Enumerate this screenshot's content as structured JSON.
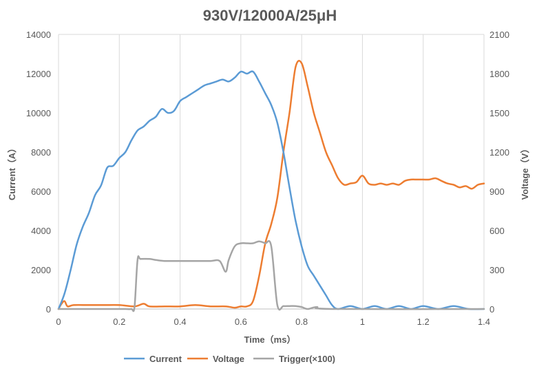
{
  "chart_data": {
    "type": "line",
    "title": "930V/12000A/25μH",
    "xlabel": "Time（ms）",
    "ylabel_left": "Current（A）",
    "ylabel_right": "Voltage（V）",
    "xlim": [
      0,
      1.4
    ],
    "ylim_left": [
      0,
      14000
    ],
    "ylim_right": [
      0,
      2100
    ],
    "x_ticks": [
      "0",
      "0.2",
      "0.4",
      "0.6",
      "0.8",
      "1",
      "1.2",
      "1.4"
    ],
    "y_ticks_left": [
      "0",
      "2000",
      "4000",
      "6000",
      "8000",
      "10000",
      "12000",
      "14000"
    ],
    "y_ticks_right": [
      "0",
      "300",
      "600",
      "900",
      "1200",
      "1500",
      "1800",
      "2100"
    ],
    "grid": "vertical",
    "legend_position": "bottom",
    "series": [
      {
        "name": "Current",
        "axis": "left",
        "color": "#5b9bd5",
        "points": [
          [
            0,
            0
          ],
          [
            0.02,
            800
          ],
          [
            0.04,
            2000
          ],
          [
            0.06,
            3300
          ],
          [
            0.08,
            4200
          ],
          [
            0.1,
            4900
          ],
          [
            0.12,
            5800
          ],
          [
            0.14,
            6300
          ],
          [
            0.16,
            7200
          ],
          [
            0.18,
            7300
          ],
          [
            0.2,
            7700
          ],
          [
            0.22,
            8000
          ],
          [
            0.24,
            8600
          ],
          [
            0.26,
            9100
          ],
          [
            0.28,
            9300
          ],
          [
            0.3,
            9600
          ],
          [
            0.32,
            9800
          ],
          [
            0.34,
            10200
          ],
          [
            0.36,
            10000
          ],
          [
            0.38,
            10100
          ],
          [
            0.4,
            10600
          ],
          [
            0.42,
            10800
          ],
          [
            0.44,
            11000
          ],
          [
            0.46,
            11200
          ],
          [
            0.48,
            11400
          ],
          [
            0.5,
            11500
          ],
          [
            0.52,
            11600
          ],
          [
            0.54,
            11700
          ],
          [
            0.56,
            11600
          ],
          [
            0.58,
            11800
          ],
          [
            0.6,
            12100
          ],
          [
            0.62,
            12000
          ],
          [
            0.64,
            12100
          ],
          [
            0.66,
            11600
          ],
          [
            0.68,
            11000
          ],
          [
            0.7,
            10400
          ],
          [
            0.72,
            9500
          ],
          [
            0.74,
            8000
          ],
          [
            0.76,
            6200
          ],
          [
            0.78,
            4500
          ],
          [
            0.8,
            3200
          ],
          [
            0.82,
            2200
          ],
          [
            0.84,
            1700
          ],
          [
            0.86,
            1200
          ],
          [
            0.88,
            700
          ],
          [
            0.9,
            200
          ],
          [
            0.92,
            0
          ],
          [
            0.96,
            150
          ],
          [
            1.0,
            0
          ],
          [
            1.04,
            150
          ],
          [
            1.08,
            0
          ],
          [
            1.12,
            150
          ],
          [
            1.16,
            0
          ],
          [
            1.2,
            150
          ],
          [
            1.25,
            0
          ],
          [
            1.3,
            150
          ],
          [
            1.35,
            0
          ],
          [
            1.4,
            0
          ]
        ]
      },
      {
        "name": "Voltage",
        "axis": "right",
        "color": "#ed7d31",
        "points": [
          [
            0,
            0
          ],
          [
            0.01,
            40
          ],
          [
            0.02,
            60
          ],
          [
            0.03,
            20
          ],
          [
            0.05,
            30
          ],
          [
            0.1,
            30
          ],
          [
            0.15,
            30
          ],
          [
            0.2,
            30
          ],
          [
            0.25,
            20
          ],
          [
            0.28,
            40
          ],
          [
            0.3,
            20
          ],
          [
            0.35,
            20
          ],
          [
            0.4,
            20
          ],
          [
            0.45,
            30
          ],
          [
            0.5,
            20
          ],
          [
            0.55,
            20
          ],
          [
            0.58,
            10
          ],
          [
            0.6,
            20
          ],
          [
            0.62,
            20
          ],
          [
            0.64,
            60
          ],
          [
            0.66,
            250
          ],
          [
            0.68,
            500
          ],
          [
            0.7,
            650
          ],
          [
            0.72,
            850
          ],
          [
            0.74,
            1200
          ],
          [
            0.76,
            1500
          ],
          [
            0.78,
            1850
          ],
          [
            0.8,
            1880
          ],
          [
            0.82,
            1700
          ],
          [
            0.84,
            1500
          ],
          [
            0.86,
            1350
          ],
          [
            0.88,
            1200
          ],
          [
            0.9,
            1100
          ],
          [
            0.92,
            1000
          ],
          [
            0.94,
            950
          ],
          [
            0.96,
            960
          ],
          [
            0.98,
            970
          ],
          [
            1.0,
            1020
          ],
          [
            1.02,
            960
          ],
          [
            1.04,
            950
          ],
          [
            1.06,
            960
          ],
          [
            1.08,
            950
          ],
          [
            1.1,
            960
          ],
          [
            1.12,
            950
          ],
          [
            1.14,
            980
          ],
          [
            1.16,
            990
          ],
          [
            1.18,
            990
          ],
          [
            1.2,
            990
          ],
          [
            1.22,
            990
          ],
          [
            1.24,
            1000
          ],
          [
            1.26,
            980
          ],
          [
            1.28,
            960
          ],
          [
            1.3,
            950
          ],
          [
            1.32,
            930
          ],
          [
            1.34,
            940
          ],
          [
            1.36,
            920
          ],
          [
            1.38,
            950
          ],
          [
            1.4,
            960
          ]
        ]
      },
      {
        "name": "Trigger(×100)",
        "axis": "left",
        "color": "#a5a5a5",
        "points": [
          [
            0,
            0
          ],
          [
            0.2,
            0
          ],
          [
            0.22,
            0
          ],
          [
            0.24,
            0
          ],
          [
            0.25,
            100
          ],
          [
            0.26,
            2500
          ],
          [
            0.27,
            2550
          ],
          [
            0.3,
            2550
          ],
          [
            0.32,
            2500
          ],
          [
            0.35,
            2450
          ],
          [
            0.4,
            2450
          ],
          [
            0.45,
            2450
          ],
          [
            0.5,
            2450
          ],
          [
            0.53,
            2450
          ],
          [
            0.55,
            1900
          ],
          [
            0.56,
            2500
          ],
          [
            0.58,
            3200
          ],
          [
            0.6,
            3350
          ],
          [
            0.62,
            3350
          ],
          [
            0.64,
            3350
          ],
          [
            0.66,
            3450
          ],
          [
            0.68,
            3350
          ],
          [
            0.7,
            3200
          ],
          [
            0.72,
            200
          ],
          [
            0.74,
            150
          ],
          [
            0.76,
            150
          ],
          [
            0.78,
            150
          ],
          [
            0.8,
            100
          ],
          [
            0.82,
            0
          ],
          [
            0.85,
            100
          ],
          [
            0.9,
            0
          ],
          [
            1.4,
            0
          ]
        ]
      }
    ]
  }
}
